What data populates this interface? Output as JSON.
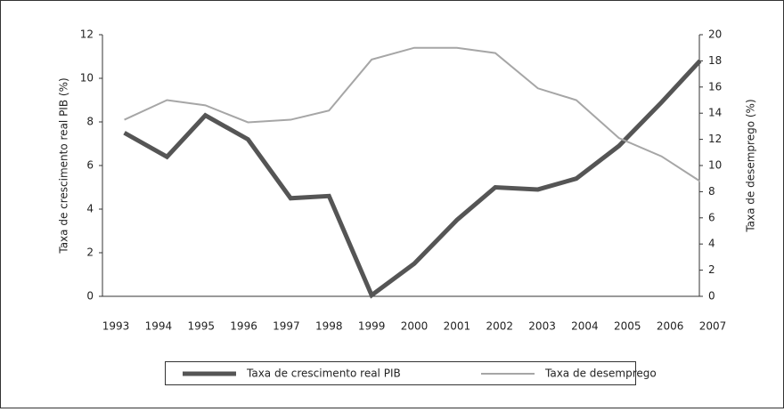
{
  "chart_data": {
    "type": "line",
    "x": [
      1993.2,
      1994.2,
      1995.1,
      1996.1,
      1997.1,
      1998.0,
      1999.0,
      2000.0,
      2001.0,
      2001.9,
      2002.9,
      2003.8,
      2004.8,
      2005.8,
      2006.7
    ],
    "xlim": [
      1993,
      2007
    ],
    "xticks": [
      1993,
      1994,
      1995,
      1996,
      1997,
      1998,
      1999,
      2000,
      2001,
      2002,
      2003,
      2004,
      2005,
      2006,
      2007
    ],
    "ylim": [
      0,
      12
    ],
    "yticks": [
      0,
      2,
      4,
      6,
      8,
      10,
      12
    ],
    "y2lim": [
      0,
      20
    ],
    "y2ticks": [
      0,
      2,
      4,
      6,
      8,
      10,
      12,
      14,
      16,
      18,
      20
    ],
    "ylabel": "Taxa de crescimento real PIB (%)",
    "y2label": "Taxa de desemprego (%)",
    "legend": "bottom",
    "series": [
      {
        "name": "Taxa de crescimento real PIB",
        "color": "#555555",
        "width": 5,
        "values": [
          7.5,
          6.4,
          8.3,
          7.2,
          4.5,
          4.6,
          0.05,
          1.5,
          3.5,
          5.0,
          4.9,
          5.4,
          6.9,
          8.9,
          10.8
        ]
      },
      {
        "name": "Taxa de desemprego",
        "color": "#a6a6a6",
        "width": 2,
        "axis": "y2",
        "values": [
          13.5,
          15.0,
          14.6,
          13.3,
          13.5,
          14.2,
          18.1,
          19.0,
          19.0,
          18.6,
          15.9,
          15.0,
          12.1,
          10.7,
          8.8
        ]
      }
    ]
  }
}
